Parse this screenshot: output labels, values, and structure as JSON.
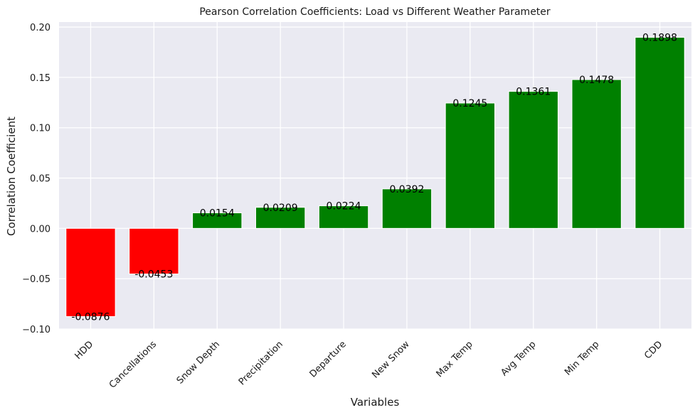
{
  "chart_data": {
    "type": "bar",
    "title": "Pearson Correlation Coefficients: Load vs Different Weather Parameter",
    "xlabel": "Variables",
    "ylabel": "Correlation Coefficient",
    "ylim": [
      -0.1,
      0.205
    ],
    "yticks": [
      "−0.10",
      "−0.05",
      "0.00",
      "0.05",
      "0.10",
      "0.15",
      "0.20"
    ],
    "ytick_values": [
      -0.1,
      -0.05,
      0.0,
      0.05,
      0.1,
      0.15,
      0.2
    ],
    "categories": [
      "HDD",
      "Cancellations",
      "Snow Depth",
      "Precipitation",
      "Departure",
      "New Snow",
      "Max Temp",
      "Avg Temp",
      "Min Temp",
      "CDD"
    ],
    "values": [
      -0.0876,
      -0.0453,
      0.0154,
      0.0209,
      0.0224,
      0.0392,
      0.1245,
      0.1361,
      0.1478,
      0.1898
    ],
    "data_labels": [
      "-0.0876",
      "-0.0453",
      "0.0154",
      "0.0209",
      "0.0224",
      "0.0392",
      "0.1245",
      "0.1361",
      "0.1478",
      "0.1898"
    ],
    "grid": true,
    "colors": {
      "positive": "#008000",
      "negative": "#ff0000",
      "plot_background": "#eaeaf2",
      "grid": "#ffffff"
    }
  }
}
